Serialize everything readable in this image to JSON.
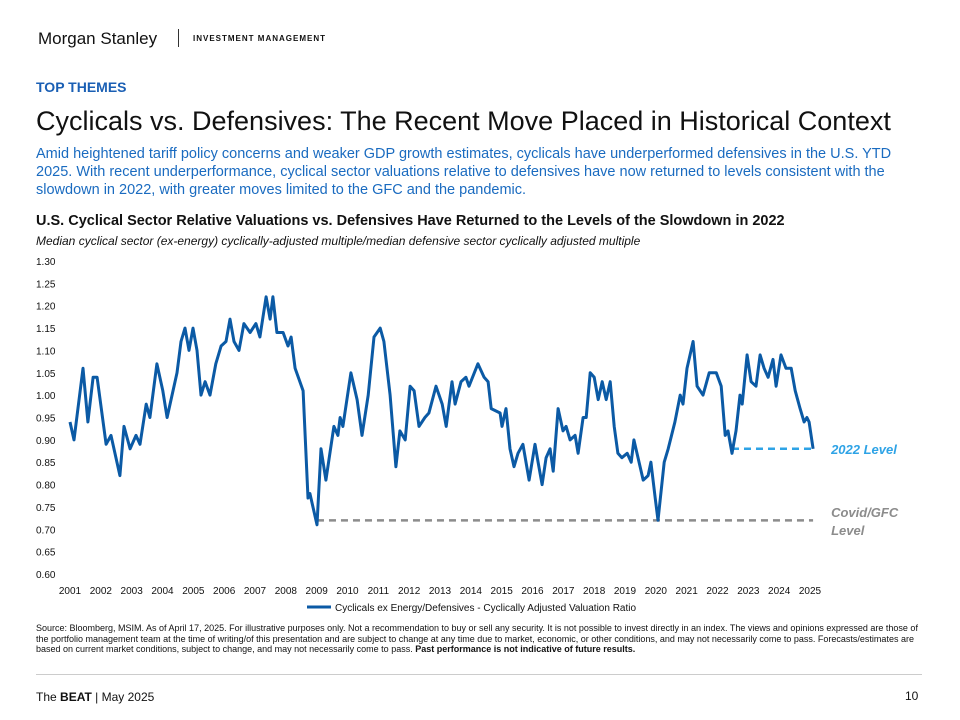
{
  "header": {
    "brand": "Morgan Stanley",
    "division": "INVESTMENT MANAGEMENT"
  },
  "section": "TOP THEMES",
  "title": "Cyclicals vs. Defensives: The Recent Move Placed in Historical Context",
  "intro": "Amid heightened tariff policy concerns and weaker GDP growth estimates, cyclicals have underperformed defensives in the U.S. YTD 2025. With recent underperformance, cyclical sector valuations relative to defensives have now returned to levels consistent with the slowdown in 2022, with greater moves limited to the GFC and the pandemic.",
  "chart_data": {
    "type": "line",
    "title": "U.S. Cyclical Sector Relative Valuations vs. Defensives Have Returned to the Levels of the Slowdown in 2022",
    "subtitle": "Median cyclical sector (ex-energy) cyclically-adjusted multiple/median defensive sector cyclically adjusted multiple",
    "x": [
      2001.0,
      2001.13,
      2001.42,
      2001.58,
      2001.75,
      2001.88,
      2002.17,
      2002.33,
      2002.62,
      2002.75,
      2002.95,
      2003.14,
      2003.27,
      2003.47,
      2003.59,
      2003.82,
      2004.01,
      2004.15,
      2004.47,
      2004.6,
      2004.73,
      2004.86,
      2004.99,
      2005.12,
      2005.25,
      2005.38,
      2005.54,
      2005.73,
      2005.9,
      2006.06,
      2006.19,
      2006.32,
      2006.48,
      2006.64,
      2006.84,
      2007.03,
      2007.16,
      2007.36,
      2007.49,
      2007.58,
      2007.71,
      2007.91,
      2008.07,
      2008.17,
      2008.3,
      2008.56,
      2008.72,
      2008.78,
      2009.01,
      2009.14,
      2009.3,
      2009.56,
      2009.69,
      2009.76,
      2009.85,
      2010.11,
      2010.31,
      2010.47,
      2010.67,
      2010.86,
      2011.06,
      2011.18,
      2011.38,
      2011.57,
      2011.7,
      2011.87,
      2012.03,
      2012.16,
      2012.32,
      2012.51,
      2012.64,
      2012.87,
      2013.07,
      2013.2,
      2013.39,
      2013.49,
      2013.68,
      2013.84,
      2013.94,
      2014.23,
      2014.43,
      2014.56,
      2014.66,
      2014.95,
      2015.01,
      2015.14,
      2015.27,
      2015.4,
      2015.53,
      2015.69,
      2015.89,
      2016.08,
      2016.18,
      2016.31,
      2016.44,
      2016.57,
      2016.67,
      2016.83,
      2016.99,
      2017.09,
      2017.22,
      2017.38,
      2017.48,
      2017.64,
      2017.74,
      2017.87,
      2018.0,
      2018.13,
      2018.26,
      2018.39,
      2018.52,
      2018.65,
      2018.77,
      2018.9,
      2019.07,
      2019.2,
      2019.29,
      2019.39,
      2019.59,
      2019.75,
      2019.84,
      2019.98,
      2020.07,
      2020.27,
      2020.4,
      2020.62,
      2020.79,
      2020.88,
      2021.01,
      2021.21,
      2021.34,
      2021.53,
      2021.73,
      2021.96,
      2022.12,
      2022.25,
      2022.34,
      2022.47,
      2022.6,
      2022.73,
      2022.8,
      2022.96,
      2023.09,
      2023.25,
      2023.38,
      2023.51,
      2023.64,
      2023.8,
      2023.9,
      2024.06,
      2024.22,
      2024.39,
      2024.52,
      2024.68,
      2024.81,
      2024.9,
      2024.97,
      2025.1
    ],
    "series": [
      {
        "name": "Cyclicals ex Energy/Defensives - Cyclically Adjusted Valuation Ratio",
        "color": "#0b5aa5",
        "values": [
          0.94,
          0.9,
          1.06,
          0.94,
          1.04,
          1.04,
          0.89,
          0.91,
          0.82,
          0.93,
          0.88,
          0.91,
          0.89,
          0.98,
          0.95,
          1.07,
          1.01,
          0.95,
          1.05,
          1.12,
          1.15,
          1.1,
          1.15,
          1.1,
          1.0,
          1.03,
          1.0,
          1.07,
          1.11,
          1.12,
          1.17,
          1.12,
          1.1,
          1.16,
          1.14,
          1.16,
          1.13,
          1.22,
          1.17,
          1.22,
          1.14,
          1.14,
          1.11,
          1.13,
          1.06,
          1.01,
          0.77,
          0.78,
          0.71,
          0.88,
          0.81,
          0.93,
          0.91,
          0.95,
          0.93,
          1.05,
          0.99,
          0.91,
          1.0,
          1.13,
          1.15,
          1.12,
          1.0,
          0.84,
          0.92,
          0.9,
          1.02,
          1.01,
          0.93,
          0.95,
          0.96,
          1.02,
          0.98,
          0.93,
          1.03,
          0.98,
          1.03,
          1.04,
          1.02,
          1.07,
          1.04,
          1.03,
          0.97,
          0.96,
          0.93,
          0.97,
          0.88,
          0.84,
          0.87,
          0.89,
          0.81,
          0.89,
          0.85,
          0.8,
          0.86,
          0.88,
          0.83,
          0.97,
          0.92,
          0.93,
          0.9,
          0.91,
          0.87,
          0.95,
          0.95,
          1.05,
          1.04,
          0.99,
          1.03,
          0.99,
          1.03,
          0.93,
          0.87,
          0.86,
          0.87,
          0.85,
          0.9,
          0.87,
          0.81,
          0.82,
          0.85,
          0.77,
          0.72,
          0.85,
          0.88,
          0.94,
          1.0,
          0.98,
          1.06,
          1.12,
          1.02,
          1.0,
          1.05,
          1.05,
          1.02,
          0.91,
          0.92,
          0.87,
          0.92,
          1.0,
          0.98,
          1.09,
          1.03,
          1.02,
          1.09,
          1.06,
          1.04,
          1.08,
          1.02,
          1.09,
          1.06,
          1.06,
          1.01,
          0.97,
          0.94,
          0.95,
          0.94,
          0.88
        ]
      }
    ],
    "xlim": [
      2001,
      2025
    ],
    "xticks": [
      2001,
      2002,
      2003,
      2004,
      2005,
      2006,
      2007,
      2008,
      2009,
      2010,
      2011,
      2012,
      2013,
      2014,
      2015,
      2016,
      2017,
      2018,
      2019,
      2020,
      2021,
      2022,
      2023,
      2024,
      2025
    ],
    "ylim": [
      0.6,
      1.3
    ],
    "yticks": [
      {
        "value": 0.6,
        "label": "0.60"
      },
      0.65,
      {
        "value": 0.7,
        "label": "0.70"
      },
      0.75,
      {
        "value": 0.8,
        "label": "0.80"
      },
      0.85,
      {
        "value": 0.9,
        "label": "0.90"
      },
      0.95,
      {
        "value": 1.0,
        "label": "1.00"
      },
      1.05,
      {
        "value": 1.1,
        "label": "1.10"
      },
      1.15,
      {
        "value": 1.2,
        "label": "1.20"
      },
      1.25,
      {
        "value": 1.3,
        "label": "1.30"
      }
    ],
    "grid": false,
    "reference_lines": [
      {
        "label": "2022 Level",
        "value": 0.88,
        "x": [
          2022.47,
          2025.1
        ],
        "color": "#2ea3e6"
      },
      {
        "label": "Covid/GFC Level",
        "value": 0.72,
        "x": [
          2009.01,
          2025.1
        ],
        "color": "#8c8c8c"
      }
    ]
  },
  "source": {
    "text": "Source: Bloomberg, MSIM. As of April 17, 2025. For illustrative purposes only. Not a recommendation to buy or sell any security. It is not possible to invest directly in an index. The views and opinions expressed are those of the portfolio management team at the time of writing/of this presentation and are subject to change at any time due to market, economic, or other conditions, and may not necessarily come to pass.  Forecasts/estimates are based on current market conditions, subject to change, and may not necessarily come to pass.",
    "bold": "Past performance is not indicative of future results."
  },
  "footer": {
    "parts": [
      "The",
      "BEAT",
      "| May 2025"
    ],
    "page": "10"
  }
}
